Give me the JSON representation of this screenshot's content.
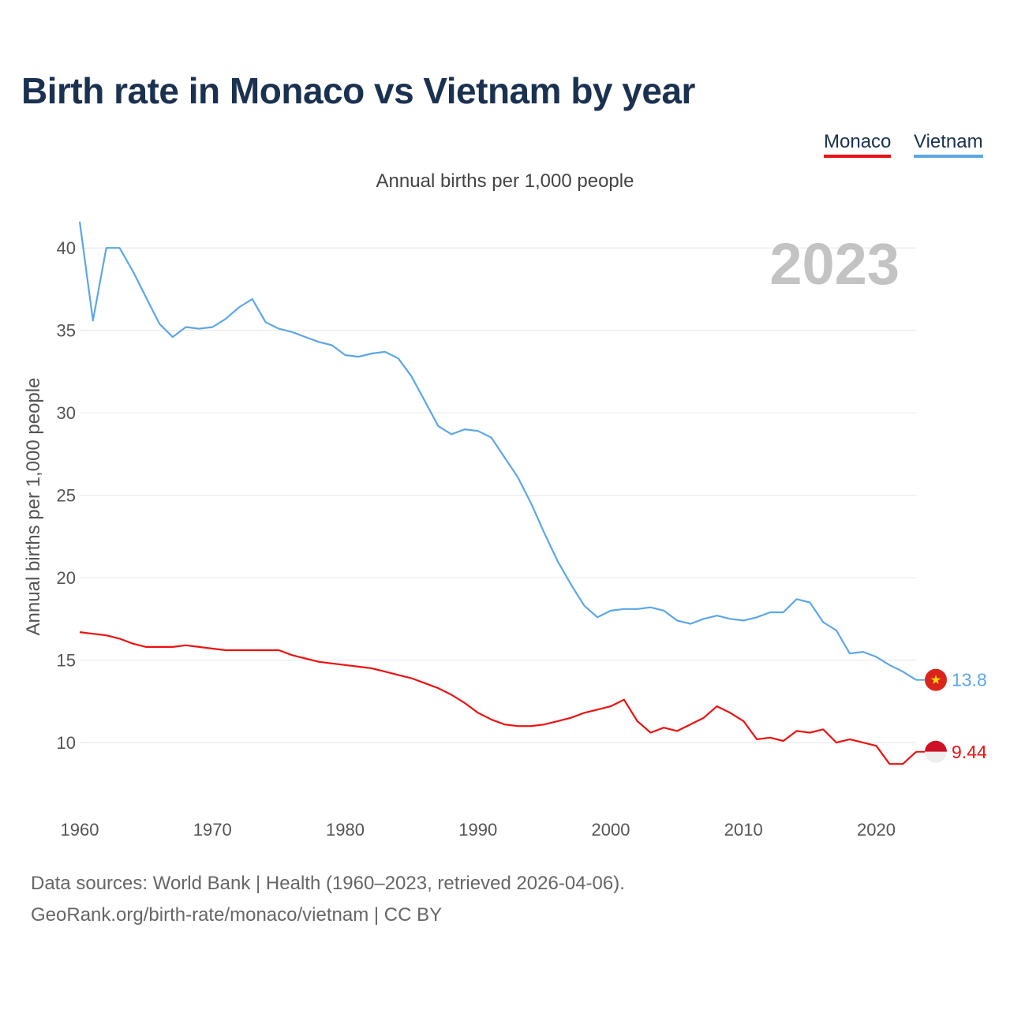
{
  "title": "Birth rate in Monaco vs Vietnam by year",
  "subtitle": "Annual births per 1,000 people",
  "legend": [
    {
      "name": "Monaco",
      "color": "#ee1111"
    },
    {
      "name": "Vietnam",
      "color": "#5ca7e6"
    }
  ],
  "footer": {
    "source": "Data sources: World Bank | Health (1960–2023, retrieved 2026-04-06).",
    "credit": "GeoRank.org/birth-rate/monaco/vietnam | CC BY"
  },
  "chart_data": {
    "type": "line",
    "title": "Birth rate in Monaco vs Vietnam by year",
    "ylabel": "Annual births per 1,000 people",
    "xlabel": "",
    "year_label": "2023",
    "xlim": [
      1960,
      2023
    ],
    "ylim": [
      6.7,
      42.5
    ],
    "x_ticks": [
      1960,
      1970,
      1980,
      1990,
      2000,
      2010,
      2020
    ],
    "y_ticks": [
      10,
      15,
      20,
      25,
      30,
      35,
      40
    ],
    "grid": true,
    "x": [
      1960,
      1961,
      1962,
      1963,
      1964,
      1965,
      1966,
      1967,
      1968,
      1969,
      1970,
      1971,
      1972,
      1973,
      1974,
      1975,
      1976,
      1977,
      1978,
      1979,
      1980,
      1981,
      1982,
      1983,
      1984,
      1985,
      1986,
      1987,
      1988,
      1989,
      1990,
      1991,
      1992,
      1993,
      1994,
      1995,
      1996,
      1997,
      1998,
      1999,
      2000,
      2001,
      2002,
      2003,
      2004,
      2005,
      2006,
      2007,
      2008,
      2009,
      2010,
      2011,
      2012,
      2013,
      2014,
      2015,
      2016,
      2017,
      2018,
      2019,
      2020,
      2021,
      2022,
      2023
    ],
    "series": [
      {
        "name": "Vietnam",
        "color": "#5ca7e6",
        "end_label": "13.8",
        "values": [
          41.6,
          35.6,
          40.0,
          40.0,
          38.6,
          37.0,
          35.4,
          34.6,
          35.2,
          35.1,
          35.2,
          35.7,
          36.4,
          36.9,
          35.5,
          35.1,
          34.9,
          34.6,
          34.3,
          34.1,
          33.5,
          33.4,
          33.6,
          33.7,
          33.3,
          32.2,
          30.7,
          29.2,
          28.7,
          29.0,
          28.9,
          28.5,
          27.3,
          26.1,
          24.5,
          22.7,
          21.0,
          19.6,
          18.3,
          17.6,
          18.0,
          18.1,
          18.1,
          18.2,
          18.0,
          17.4,
          17.2,
          17.5,
          17.7,
          17.5,
          17.4,
          17.6,
          17.9,
          17.9,
          18.7,
          18.5,
          17.3,
          16.8,
          15.4,
          15.5,
          15.2,
          14.7,
          14.3,
          13.8
        ]
      },
      {
        "name": "Monaco",
        "color": "#ee1111",
        "end_label": "9.44",
        "values": [
          16.7,
          16.6,
          16.5,
          16.3,
          16.0,
          15.8,
          15.8,
          15.8,
          15.9,
          15.8,
          15.7,
          15.6,
          15.6,
          15.6,
          15.6,
          15.6,
          15.3,
          15.1,
          14.9,
          14.8,
          14.7,
          14.6,
          14.5,
          14.3,
          14.1,
          13.9,
          13.6,
          13.3,
          12.9,
          12.4,
          11.8,
          11.4,
          11.1,
          11.0,
          11.0,
          11.1,
          11.3,
          11.5,
          11.8,
          12.0,
          12.2,
          12.6,
          11.3,
          10.6,
          10.9,
          10.7,
          11.1,
          11.5,
          12.2,
          11.8,
          11.3,
          10.2,
          10.3,
          10.1,
          10.7,
          10.6,
          10.8,
          10.0,
          10.2,
          10.0,
          9.8,
          8.7,
          8.7,
          9.44
        ]
      }
    ]
  }
}
